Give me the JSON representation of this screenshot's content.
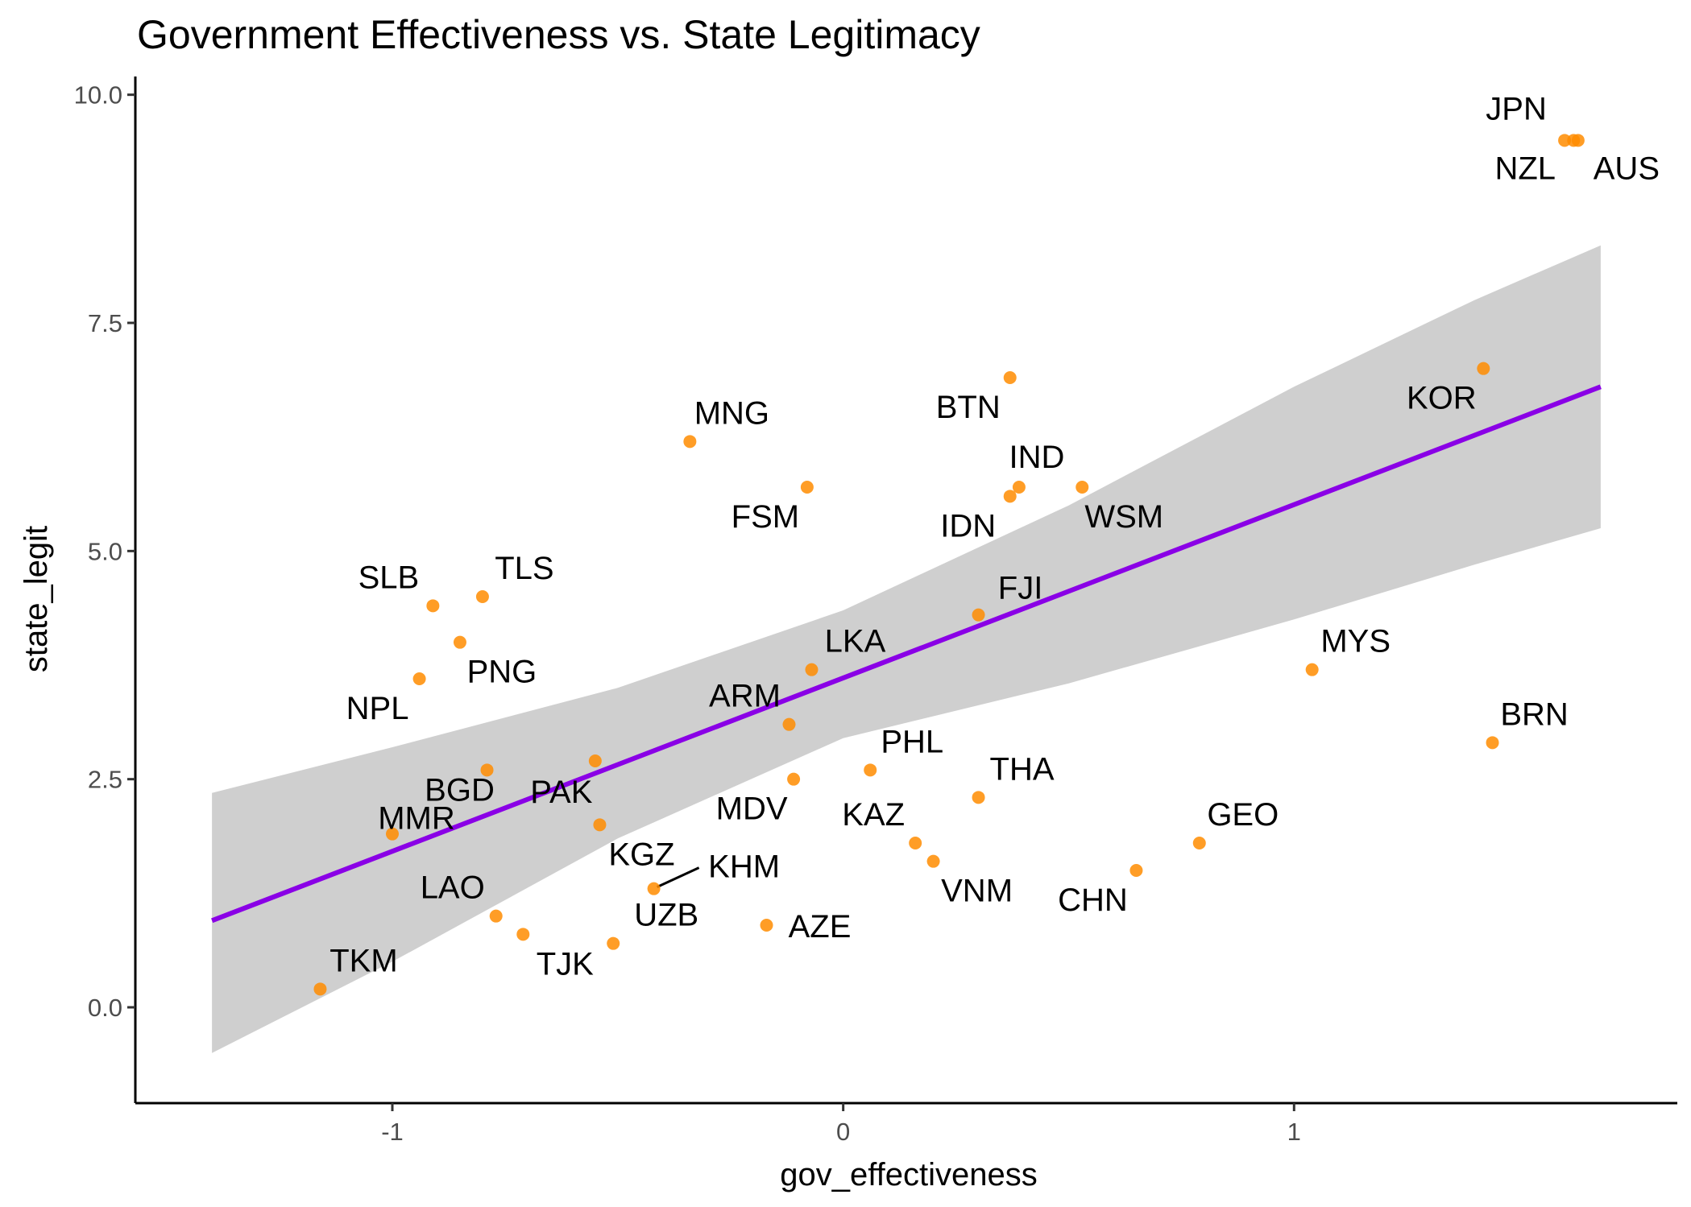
{
  "chart_data": {
    "type": "scatter",
    "title": "Government Effectiveness vs. State Legitimacy",
    "xlabel": "gov_effectiveness",
    "ylabel": "state_legit",
    "xlim": [
      -1.57,
      1.85
    ],
    "ylim": [
      -1.05,
      10.2
    ],
    "x_ticks": [
      -1,
      0,
      1
    ],
    "x_tick_labels": [
      "-1",
      "0",
      "1"
    ],
    "y_ticks": [
      0,
      2.5,
      5,
      7.5,
      10
    ],
    "y_tick_labels": [
      "0.0",
      "2.5",
      "5.0",
      "7.5",
      "10.0"
    ],
    "grid": false,
    "point_color": "#FF8C00",
    "fit_color": "#8A00E6",
    "band_color": "#CFCFCF",
    "points": [
      {
        "label": "JPN",
        "x": 1.6,
        "y": 9.5
      },
      {
        "label": "NZL",
        "x": 1.62,
        "y": 9.5
      },
      {
        "label": "AUS",
        "x": 1.63,
        "y": 9.5
      },
      {
        "label": "KOR",
        "x": 1.42,
        "y": 7.0
      },
      {
        "label": "BTN",
        "x": 0.37,
        "y": 6.9
      },
      {
        "label": "MNG",
        "x": -0.34,
        "y": 6.2
      },
      {
        "label": "FSM",
        "x": -0.08,
        "y": 5.7
      },
      {
        "label": "IND",
        "x": 0.39,
        "y": 5.7
      },
      {
        "label": "IDN",
        "x": 0.37,
        "y": 5.6
      },
      {
        "label": "WSM",
        "x": 0.53,
        "y": 5.7
      },
      {
        "label": "SLB",
        "x": -0.91,
        "y": 4.4
      },
      {
        "label": "TLS",
        "x": -0.8,
        "y": 4.5
      },
      {
        "label": "FJI",
        "x": 0.3,
        "y": 4.3
      },
      {
        "label": "PNG",
        "x": -0.85,
        "y": 4.0
      },
      {
        "label": "LKA",
        "x": -0.07,
        "y": 3.7
      },
      {
        "label": "MYS",
        "x": 1.04,
        "y": 3.7
      },
      {
        "label": "NPL",
        "x": -0.94,
        "y": 3.6
      },
      {
        "label": "ARM",
        "x": -0.12,
        "y": 3.1
      },
      {
        "label": "BRN",
        "x": 1.44,
        "y": 2.9
      },
      {
        "label": "PAK",
        "x": -0.55,
        "y": 2.7
      },
      {
        "label": "PHL",
        "x": 0.06,
        "y": 2.6
      },
      {
        "label": "BGD",
        "x": -0.79,
        "y": 2.6
      },
      {
        "label": "MDV",
        "x": -0.11,
        "y": 2.5
      },
      {
        "label": "THA",
        "x": 0.3,
        "y": 2.3
      },
      {
        "label": "KGZ",
        "x": -0.54,
        "y": 2.0
      },
      {
        "label": "MMR",
        "x": -1.0,
        "y": 1.9
      },
      {
        "label": "KAZ",
        "x": 0.16,
        "y": 1.8
      },
      {
        "label": "GEO",
        "x": 0.79,
        "y": 1.8
      },
      {
        "label": "VNM",
        "x": 0.2,
        "y": 1.6
      },
      {
        "label": "CHN",
        "x": 0.65,
        "y": 1.5
      },
      {
        "label": "KHM",
        "x": -0.42,
        "y": 1.3
      },
      {
        "label": "LAO",
        "x": -0.77,
        "y": 1.0
      },
      {
        "label": "AZE",
        "x": -0.17,
        "y": 0.9
      },
      {
        "label": "TJK",
        "x": -0.71,
        "y": 0.8
      },
      {
        "label": "UZB",
        "x": -0.51,
        "y": 0.7
      },
      {
        "label": "TKM",
        "x": -1.16,
        "y": 0.2
      }
    ],
    "fit_line": {
      "x": [
        -1.4,
        1.68
      ],
      "y": [
        0.95,
        6.8
      ]
    },
    "confidence_band": {
      "x": [
        -1.4,
        -1.0,
        -0.5,
        0.0,
        0.5,
        1.0,
        1.4,
        1.68
      ],
      "upper": [
        2.35,
        2.85,
        3.5,
        4.35,
        5.5,
        6.8,
        7.75,
        8.35
      ],
      "lower": [
        -0.5,
        0.5,
        1.85,
        2.95,
        3.55,
        4.25,
        4.85,
        5.25
      ]
    }
  }
}
